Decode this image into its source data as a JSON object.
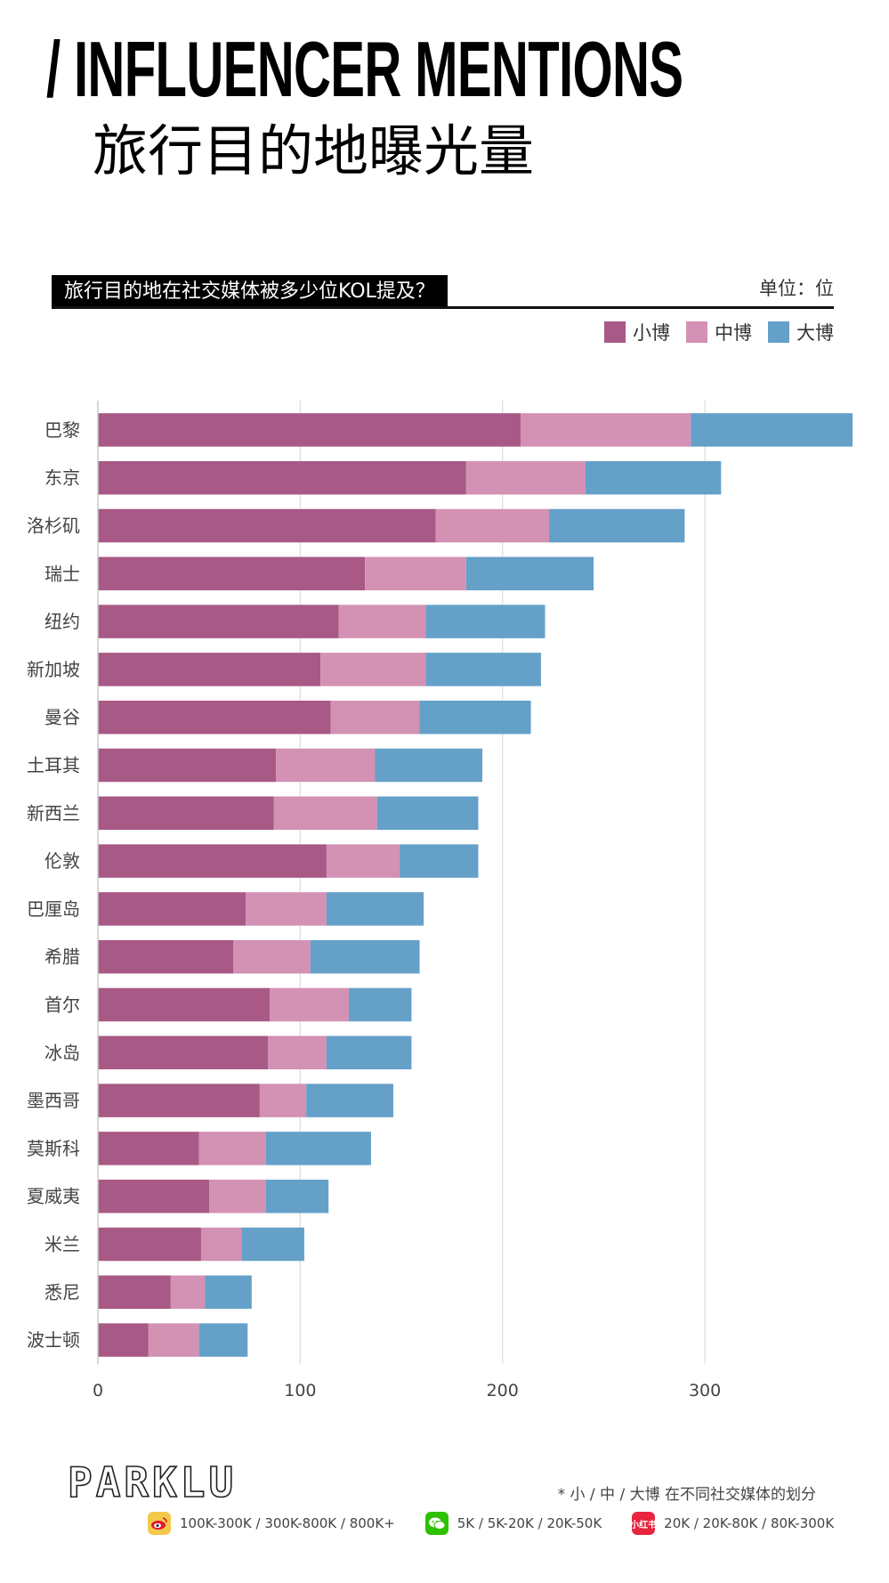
{
  "header": {
    "title_en": "/ INFLUENCER MENTIONS",
    "title_cn": "旅行目的地曝光量",
    "question": "旅行目的地在社交媒体被多少位KOL提及？",
    "unit": "单位：位"
  },
  "colors": {
    "small": "#a85985",
    "medium": "#d391b4",
    "large": "#64a0c8",
    "weibo": "#f2c94c",
    "wechat": "#2dc100",
    "xiaohongshu": "#e8243e"
  },
  "chart_data": {
    "type": "bar",
    "orientation": "horizontal",
    "stacked": true,
    "title": "旅行目的地在社交媒体被多少位KOL提及？",
    "xlabel": "",
    "ylabel": "",
    "xlim": [
      0,
      380
    ],
    "xticks": [
      0,
      100,
      200,
      300
    ],
    "grid": true,
    "legend_position": "top-right",
    "categories": [
      "巴黎",
      "东京",
      "洛杉矶",
      "瑞士",
      "纽约",
      "新加坡",
      "曼谷",
      "土耳其",
      "新西兰",
      "伦敦",
      "巴厘岛",
      "希腊",
      "首尔",
      "冰岛",
      "墨西哥",
      "莫斯科",
      "夏威夷",
      "米兰",
      "悉尼",
      "波士顿"
    ],
    "series": [
      {
        "name": "小博",
        "color": "#a85985",
        "values": [
          209,
          182,
          167,
          132,
          119,
          110,
          115,
          88,
          87,
          113,
          73,
          67,
          85,
          84,
          80,
          50,
          55,
          51,
          36,
          25
        ]
      },
      {
        "name": "中博",
        "color": "#d391b4",
        "values": [
          84,
          59,
          56,
          50,
          43,
          52,
          44,
          49,
          51,
          36,
          40,
          38,
          39,
          29,
          23,
          33,
          28,
          20,
          17,
          25
        ]
      },
      {
        "name": "大博",
        "color": "#64a0c8",
        "values": [
          80,
          67,
          67,
          63,
          59,
          57,
          55,
          53,
          50,
          39,
          48,
          54,
          31,
          42,
          43,
          52,
          31,
          31,
          23,
          24
        ]
      }
    ]
  },
  "footer": {
    "logo": "PARKLU",
    "footnote": "* 小 / 中 / 大博  在不同社交媒体的划分",
    "platforms": [
      {
        "icon": "weibo-icon",
        "label": "100K-300K / 300K-800K / 800K+"
      },
      {
        "icon": "wechat-icon",
        "label": "5K / 5K-20K / 20K-50K"
      },
      {
        "icon": "xiaohongshu-icon",
        "glyph": "小红书",
        "label": "20K / 20K-80K / 80K-300K"
      }
    ]
  }
}
